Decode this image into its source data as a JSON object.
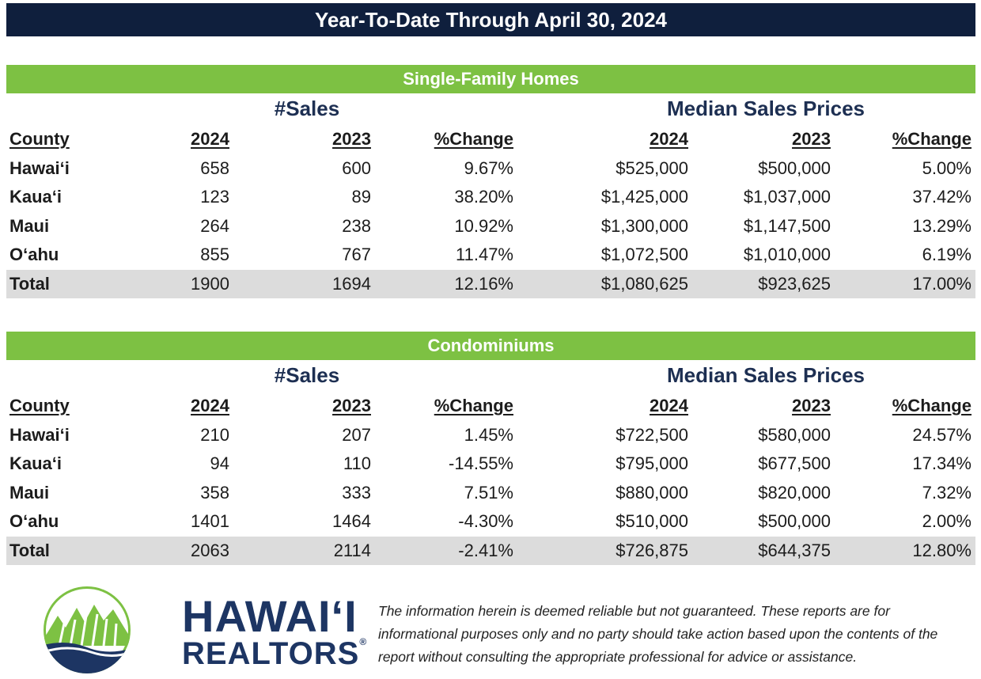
{
  "banner": "Year-To-Date Through April 30, 2024",
  "sections": [
    {
      "title": "Single-Family Homes",
      "group_sales": "#Sales",
      "group_prices": "Median Sales Prices",
      "headers": [
        "County",
        "2024",
        "2023",
        "%Change",
        "2024",
        "2023",
        "%Change"
      ],
      "rows": [
        [
          "Hawaiʻi",
          "658",
          "600",
          "9.67%",
          "$525,000",
          "$500,000",
          "5.00%"
        ],
        [
          "Kauaʻi",
          "123",
          "89",
          "38.20%",
          "$1,425,000",
          "$1,037,000",
          "37.42%"
        ],
        [
          "Maui",
          "264",
          "238",
          "10.92%",
          "$1,300,000",
          "$1,147,500",
          "13.29%"
        ],
        [
          "Oʻahu",
          "855",
          "767",
          "11.47%",
          "$1,072,500",
          "$1,010,000",
          "6.19%"
        ]
      ],
      "total": [
        "Total",
        "1900",
        "1694",
        "12.16%",
        "$1,080,625",
        "$923,625",
        "17.00%"
      ]
    },
    {
      "title": "Condominiums",
      "group_sales": "#Sales",
      "group_prices": "Median Sales Prices",
      "headers": [
        "County",
        "2024",
        "2023",
        "%Change",
        "2024",
        "2023",
        "%Change"
      ],
      "rows": [
        [
          "Hawaiʻi",
          "210",
          "207",
          "1.45%",
          "$722,500",
          "$580,000",
          "24.57%"
        ],
        [
          "Kauaʻi",
          "94",
          "110",
          "-14.55%",
          "$795,000",
          "$677,500",
          "17.34%"
        ],
        [
          "Maui",
          "358",
          "333",
          "7.51%",
          "$880,000",
          "$820,000",
          "7.32%"
        ],
        [
          "Oʻahu",
          "1401",
          "1464",
          "-4.30%",
          "$510,000",
          "$500,000",
          "2.00%"
        ]
      ],
      "total": [
        "Total",
        "2063",
        "2114",
        "-2.41%",
        "$726,875",
        "$644,375",
        "12.80%"
      ]
    }
  ],
  "logo": {
    "line1": "HAWAIʻI",
    "line2": "REALTORS",
    "mark": "®",
    "colors": {
      "navy": "#1d3563",
      "green": "#7dc143"
    }
  },
  "disclaimer": "The information herein is deemed reliable but not guaranteed. These reports are for informational purposes only and no party should take action based upon the contents of the report without consulting the appropriate professional for advice or assistance.",
  "colors": {
    "banner": "#0f1f3d",
    "section_header": "#7dc143",
    "total_row": "#dcdcdc",
    "group_heading": "#1d2f52"
  }
}
